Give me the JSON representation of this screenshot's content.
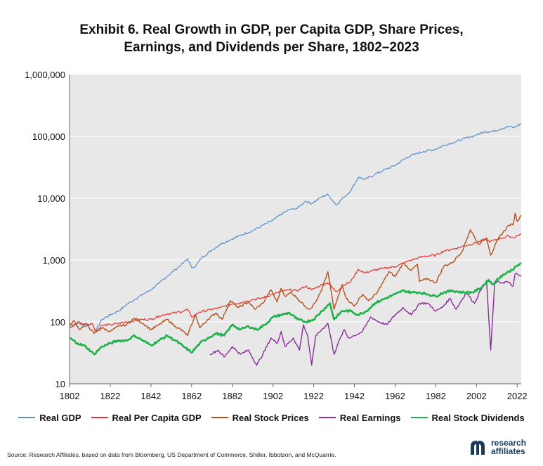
{
  "chart_data": {
    "type": "line",
    "title_line1": "Exhibit 6. Real Growth in GDP, per Capita GDP, Share Prices,",
    "title_line2": "Earnings, and Dividends per Share, 1802–2023",
    "yscale": "log",
    "ylim": [
      10,
      1000000
    ],
    "xlim": [
      1802,
      2024
    ],
    "y_ticks": [
      {
        "value": 1000000,
        "label": "1,000,000"
      },
      {
        "value": 100000,
        "label": "100,000"
      },
      {
        "value": 10000,
        "label": "10,000"
      },
      {
        "value": 1000,
        "label": "1,000"
      },
      {
        "value": 100,
        "label": "100"
      },
      {
        "value": 10,
        "label": "10"
      }
    ],
    "x_ticks": [
      {
        "value": 1802,
        "label": "1802"
      },
      {
        "value": 1822,
        "label": "1822"
      },
      {
        "value": 1842,
        "label": "1842"
      },
      {
        "value": 1862,
        "label": "1862"
      },
      {
        "value": 1882,
        "label": "1882"
      },
      {
        "value": 1902,
        "label": "1902"
      },
      {
        "value": 1922,
        "label": "1922"
      },
      {
        "value": 1942,
        "label": "1942"
      },
      {
        "value": 1962,
        "label": "1962"
      },
      {
        "value": 1982,
        "label": "1982"
      },
      {
        "value": 2002,
        "label": "2002"
      },
      {
        "value": 2022,
        "label": "2022"
      }
    ],
    "grid": "horizontal",
    "legend_position": "bottom",
    "series": [
      {
        "name": "Real GDP",
        "color": "#5b8fc9",
        "width": 1.2,
        "points": [
          [
            1802,
            80
          ],
          [
            1806,
            95
          ],
          [
            1810,
            85
          ],
          [
            1813,
            95
          ],
          [
            1815,
            72
          ],
          [
            1818,
            110
          ],
          [
            1822,
            130
          ],
          [
            1826,
            150
          ],
          [
            1830,
            190
          ],
          [
            1834,
            230
          ],
          [
            1838,
            280
          ],
          [
            1842,
            330
          ],
          [
            1846,
            420
          ],
          [
            1850,
            550
          ],
          [
            1854,
            700
          ],
          [
            1858,
            900
          ],
          [
            1860,
            1050
          ],
          [
            1862,
            760
          ],
          [
            1864,
            800
          ],
          [
            1867,
            1100
          ],
          [
            1872,
            1450
          ],
          [
            1876,
            1800
          ],
          [
            1882,
            2200
          ],
          [
            1886,
            2500
          ],
          [
            1892,
            3000
          ],
          [
            1896,
            3500
          ],
          [
            1902,
            4400
          ],
          [
            1906,
            5500
          ],
          [
            1910,
            6500
          ],
          [
            1914,
            6900
          ],
          [
            1918,
            9000
          ],
          [
            1921,
            8200
          ],
          [
            1926,
            10500
          ],
          [
            1929,
            11500
          ],
          [
            1933,
            7800
          ],
          [
            1937,
            10500
          ],
          [
            1940,
            13000
          ],
          [
            1944,
            22000
          ],
          [
            1947,
            20000
          ],
          [
            1952,
            24000
          ],
          [
            1956,
            28000
          ],
          [
            1962,
            34000
          ],
          [
            1968,
            46000
          ],
          [
            1972,
            52000
          ],
          [
            1976,
            57000
          ],
          [
            1982,
            62000
          ],
          [
            1986,
            72000
          ],
          [
            1992,
            82000
          ],
          [
            1996,
            92000
          ],
          [
            2002,
            105000
          ],
          [
            2006,
            120000
          ],
          [
            2009,
            118000
          ],
          [
            2014,
            132000
          ],
          [
            2018,
            145000
          ],
          [
            2020,
            138000
          ],
          [
            2024,
            160000
          ]
        ]
      },
      {
        "name": "Real Per Capita GDP",
        "color": "#e8332b",
        "width": 1.2,
        "points": [
          [
            1802,
            80
          ],
          [
            1806,
            100
          ],
          [
            1810,
            90
          ],
          [
            1813,
            95
          ],
          [
            1815,
            70
          ],
          [
            1818,
            88
          ],
          [
            1822,
            90
          ],
          [
            1830,
            100
          ],
          [
            1838,
            110
          ],
          [
            1842,
            110
          ],
          [
            1846,
            125
          ],
          [
            1850,
            135
          ],
          [
            1854,
            140
          ],
          [
            1858,
            150
          ],
          [
            1860,
            160
          ],
          [
            1862,
            120
          ],
          [
            1866,
            145
          ],
          [
            1872,
            160
          ],
          [
            1876,
            170
          ],
          [
            1882,
            195
          ],
          [
            1886,
            205
          ],
          [
            1892,
            230
          ],
          [
            1896,
            240
          ],
          [
            1902,
            280
          ],
          [
            1906,
            310
          ],
          [
            1910,
            330
          ],
          [
            1914,
            320
          ],
          [
            1918,
            380
          ],
          [
            1921,
            330
          ],
          [
            1926,
            400
          ],
          [
            1929,
            430
          ],
          [
            1933,
            310
          ],
          [
            1937,
            400
          ],
          [
            1940,
            440
          ],
          [
            1944,
            710
          ],
          [
            1947,
            620
          ],
          [
            1952,
            690
          ],
          [
            1956,
            730
          ],
          [
            1962,
            780
          ],
          [
            1968,
            950
          ],
          [
            1972,
            1050
          ],
          [
            1976,
            1150
          ],
          [
            1982,
            1200
          ],
          [
            1986,
            1400
          ],
          [
            1992,
            1550
          ],
          [
            1996,
            1700
          ],
          [
            2002,
            1900
          ],
          [
            2006,
            2150
          ],
          [
            2009,
            2000
          ],
          [
            2014,
            2250
          ],
          [
            2018,
            2450
          ],
          [
            2020,
            2300
          ],
          [
            2024,
            2650
          ]
        ]
      },
      {
        "name": "Real Stock Prices",
        "color": "#b5501a",
        "width": 1.4,
        "points": [
          [
            1802,
            85
          ],
          [
            1804,
            105
          ],
          [
            1807,
            75
          ],
          [
            1810,
            95
          ],
          [
            1814,
            65
          ],
          [
            1818,
            80
          ],
          [
            1822,
            70
          ],
          [
            1826,
            85
          ],
          [
            1830,
            90
          ],
          [
            1834,
            115
          ],
          [
            1838,
            95
          ],
          [
            1842,
            75
          ],
          [
            1846,
            90
          ],
          [
            1850,
            110
          ],
          [
            1854,
            85
          ],
          [
            1858,
            70
          ],
          [
            1860,
            60
          ],
          [
            1862,
            90
          ],
          [
            1864,
            130
          ],
          [
            1866,
            80
          ],
          [
            1870,
            110
          ],
          [
            1874,
            140
          ],
          [
            1877,
            110
          ],
          [
            1881,
            220
          ],
          [
            1885,
            170
          ],
          [
            1890,
            210
          ],
          [
            1893,
            160
          ],
          [
            1897,
            200
          ],
          [
            1901,
            330
          ],
          [
            1904,
            210
          ],
          [
            1906,
            350
          ],
          [
            1908,
            260
          ],
          [
            1911,
            300
          ],
          [
            1914,
            240
          ],
          [
            1917,
            190
          ],
          [
            1920,
            160
          ],
          [
            1923,
            210
          ],
          [
            1926,
            330
          ],
          [
            1929,
            650
          ],
          [
            1932,
            160
          ],
          [
            1936,
            400
          ],
          [
            1938,
            240
          ],
          [
            1942,
            180
          ],
          [
            1946,
            280
          ],
          [
            1949,
            220
          ],
          [
            1953,
            290
          ],
          [
            1959,
            650
          ],
          [
            1962,
            540
          ],
          [
            1966,
            900
          ],
          [
            1970,
            680
          ],
          [
            1973,
            850
          ],
          [
            1974,
            450
          ],
          [
            1978,
            500
          ],
          [
            1982,
            430
          ],
          [
            1986,
            800
          ],
          [
            1990,
            900
          ],
          [
            1995,
            1400
          ],
          [
            1999,
            3100
          ],
          [
            2003,
            1800
          ],
          [
            2007,
            2300
          ],
          [
            2009,
            1200
          ],
          [
            2013,
            2300
          ],
          [
            2018,
            3700
          ],
          [
            2020,
            3700
          ],
          [
            2021,
            5700
          ],
          [
            2022,
            4200
          ],
          [
            2024,
            5300
          ]
        ]
      },
      {
        "name": "Real Earnings",
        "color": "#8a2c9b",
        "width": 1.4,
        "points": [
          [
            1871,
            30
          ],
          [
            1875,
            35
          ],
          [
            1878,
            27
          ],
          [
            1882,
            40
          ],
          [
            1886,
            30
          ],
          [
            1890,
            35
          ],
          [
            1894,
            20
          ],
          [
            1897,
            30
          ],
          [
            1901,
            55
          ],
          [
            1904,
            45
          ],
          [
            1906,
            70
          ],
          [
            1908,
            40
          ],
          [
            1912,
            55
          ],
          [
            1915,
            35
          ],
          [
            1917,
            90
          ],
          [
            1919,
            60
          ],
          [
            1921,
            20
          ],
          [
            1923,
            60
          ],
          [
            1926,
            75
          ],
          [
            1929,
            95
          ],
          [
            1932,
            30
          ],
          [
            1934,
            45
          ],
          [
            1937,
            75
          ],
          [
            1939,
            55
          ],
          [
            1942,
            60
          ],
          [
            1946,
            70
          ],
          [
            1950,
            120
          ],
          [
            1954,
            100
          ],
          [
            1958,
            90
          ],
          [
            1962,
            130
          ],
          [
            1966,
            170
          ],
          [
            1970,
            130
          ],
          [
            1974,
            200
          ],
          [
            1978,
            200
          ],
          [
            1982,
            150
          ],
          [
            1985,
            170
          ],
          [
            1989,
            240
          ],
          [
            1992,
            160
          ],
          [
            1997,
            300
          ],
          [
            2001,
            200
          ],
          [
            2005,
            380
          ],
          [
            2007,
            420
          ],
          [
            2009,
            35
          ],
          [
            2011,
            450
          ],
          [
            2015,
            430
          ],
          [
            2017,
            450
          ],
          [
            2020,
            380
          ],
          [
            2021,
            600
          ],
          [
            2024,
            550
          ]
        ]
      },
      {
        "name": "Real Stock Dividends",
        "color": "#1fb24a",
        "width": 2.6,
        "points": [
          [
            1802,
            55
          ],
          [
            1806,
            45
          ],
          [
            1810,
            40
          ],
          [
            1814,
            30
          ],
          [
            1818,
            40
          ],
          [
            1822,
            45
          ],
          [
            1826,
            50
          ],
          [
            1830,
            50
          ],
          [
            1834,
            60
          ],
          [
            1838,
            50
          ],
          [
            1842,
            42
          ],
          [
            1846,
            50
          ],
          [
            1850,
            60
          ],
          [
            1854,
            50
          ],
          [
            1858,
            40
          ],
          [
            1862,
            32
          ],
          [
            1866,
            45
          ],
          [
            1870,
            55
          ],
          [
            1874,
            65
          ],
          [
            1878,
            60
          ],
          [
            1882,
            90
          ],
          [
            1886,
            75
          ],
          [
            1890,
            85
          ],
          [
            1894,
            75
          ],
          [
            1898,
            90
          ],
          [
            1902,
            120
          ],
          [
            1906,
            130
          ],
          [
            1910,
            140
          ],
          [
            1914,
            110
          ],
          [
            1918,
            100
          ],
          [
            1922,
            110
          ],
          [
            1926,
            150
          ],
          [
            1930,
            200
          ],
          [
            1932,
            110
          ],
          [
            1936,
            150
          ],
          [
            1940,
            150
          ],
          [
            1944,
            130
          ],
          [
            1948,
            150
          ],
          [
            1952,
            200
          ],
          [
            1956,
            230
          ],
          [
            1962,
            280
          ],
          [
            1966,
            320
          ],
          [
            1970,
            300
          ],
          [
            1974,
            300
          ],
          [
            1978,
            280
          ],
          [
            1982,
            260
          ],
          [
            1986,
            300
          ],
          [
            1990,
            320
          ],
          [
            1995,
            300
          ],
          [
            2000,
            300
          ],
          [
            2004,
            350
          ],
          [
            2008,
            480
          ],
          [
            2010,
            400
          ],
          [
            2014,
            550
          ],
          [
            2018,
            650
          ],
          [
            2022,
            800
          ],
          [
            2024,
            900
          ]
        ]
      }
    ]
  },
  "source_text": "Source: Research Affiliates, based on data from Bloomberg, US Department of Commerce, Shiller, Ibbotson, and McQuarrie.",
  "logo": {
    "line1": "research",
    "line2": "affiliates",
    "icon": "research-affiliates-logo-icon",
    "color": "#1a3a5c"
  },
  "colors": {
    "plot_background": "#e8e8e8",
    "gridline": "#ffffff"
  }
}
